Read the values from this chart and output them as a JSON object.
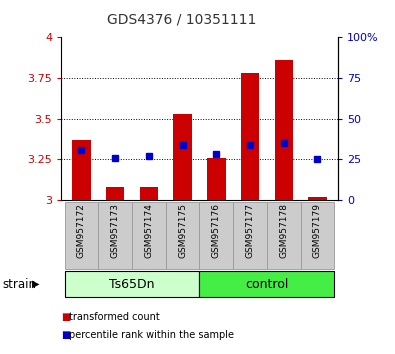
{
  "title": "GDS4376 / 10351111",
  "samples": [
    "GSM957172",
    "GSM957173",
    "GSM957174",
    "GSM957175",
    "GSM957176",
    "GSM957177",
    "GSM957178",
    "GSM957179"
  ],
  "red_values": [
    3.37,
    3.08,
    3.08,
    3.53,
    3.26,
    3.78,
    3.86,
    3.02
  ],
  "blue_values": [
    3.31,
    3.26,
    3.27,
    3.34,
    3.28,
    3.34,
    3.35,
    3.25
  ],
  "ylim": [
    3.0,
    4.0
  ],
  "yticks_left": [
    3.0,
    3.25,
    3.5,
    3.75,
    4.0
  ],
  "ytick_labels_left": [
    "3",
    "3.25",
    "3.5",
    "3.75",
    "4"
  ],
  "yticks_right_vals": [
    3.0,
    3.25,
    3.5,
    3.75,
    4.0
  ],
  "ytick_labels_right": [
    "0",
    "25",
    "50",
    "75",
    "100%"
  ],
  "groups": [
    {
      "label": "Ts65Dn",
      "indices": [
        0,
        1,
        2,
        3
      ],
      "color": "#ccffcc"
    },
    {
      "label": "control",
      "indices": [
        4,
        5,
        6,
        7
      ],
      "color": "#44ee44"
    }
  ],
  "group_row_label": "strain",
  "bar_color": "#cc0000",
  "marker_color": "#0000cc",
  "bar_width": 0.55,
  "baseline": 3.0,
  "legend_items": [
    {
      "label": "transformed count",
      "color": "#cc0000"
    },
    {
      "label": "percentile rank within the sample",
      "color": "#0000cc"
    }
  ],
  "bg_plot": "#ffffff",
  "tick_label_color_left": "#cc0000",
  "tick_label_color_right": "#0000cc",
  "title_color": "#333333",
  "xticklabel_bg": "#cccccc",
  "xticklabel_bg_border": "#999999"
}
